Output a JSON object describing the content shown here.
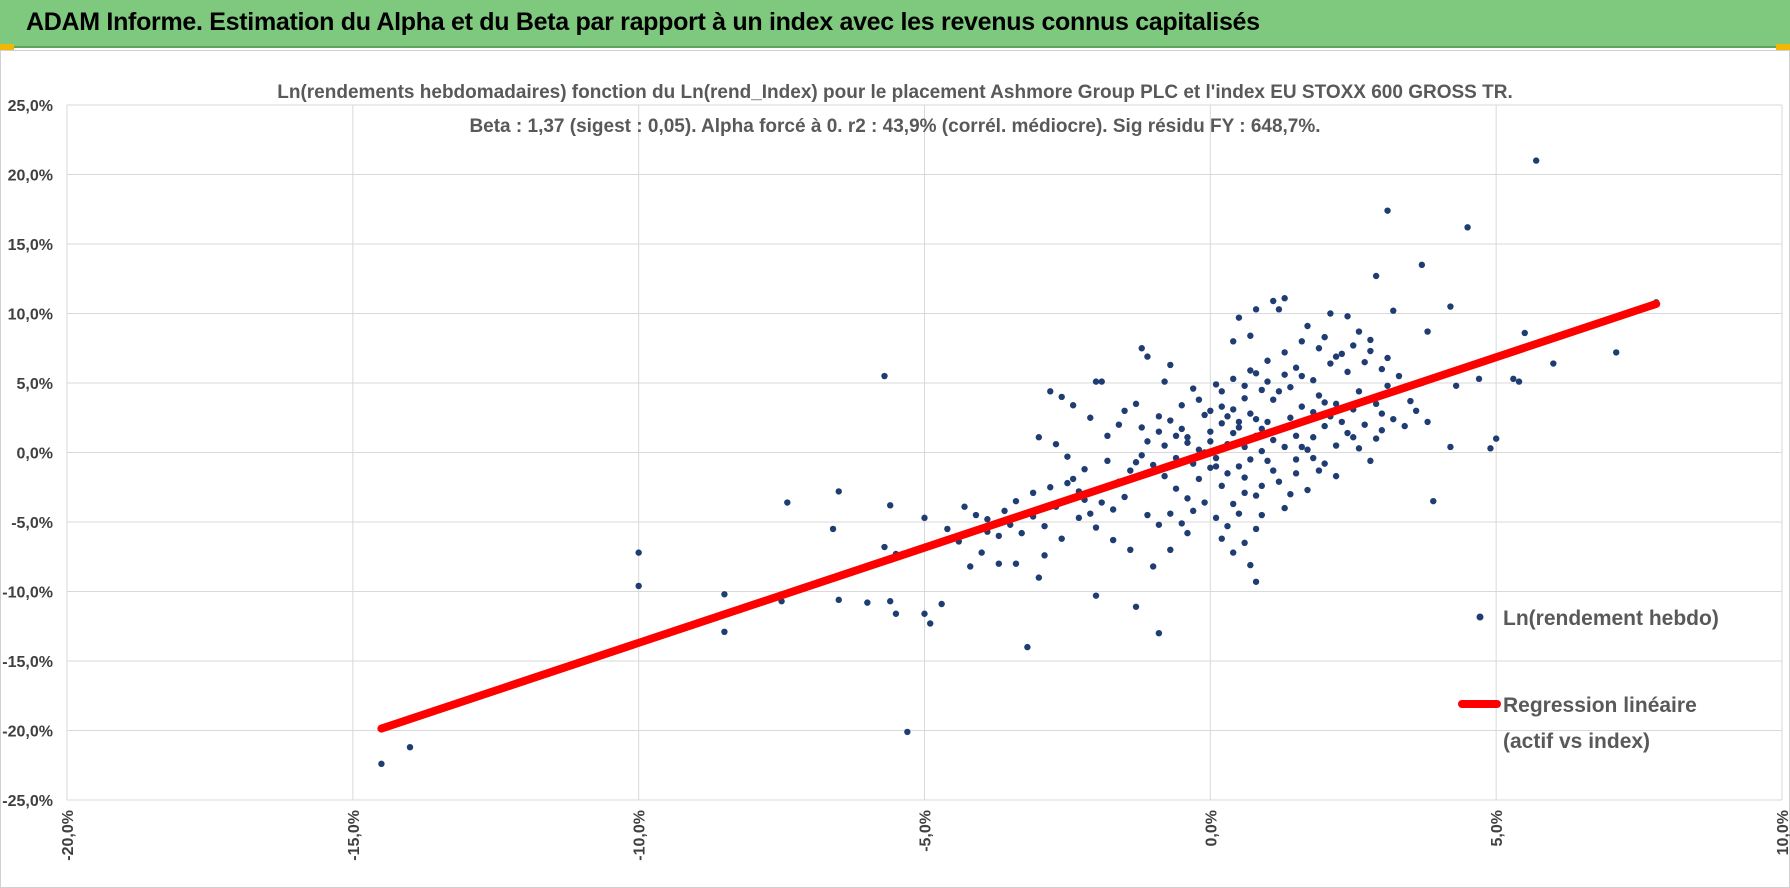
{
  "header": {
    "title": "ADAM Informe. Estimation du Alpha et du Beta par rapport à un index avec les revenus connus capitalisés"
  },
  "colors": {
    "header_bg": "#7fc97f",
    "points": "#1f3d73",
    "regression": "#ff0000",
    "grid": "#d9d9d9"
  },
  "chart_data": {
    "type": "scatter",
    "title": "Ln(rendements hebdomadaires) fonction du Ln(rend_Index) pour le placement Ashmore Group PLC et l'index EU STOXX 600 GROSS TR.",
    "subtitle": "Beta : 1,37 (sigest : 0,05). Alpha forcé à 0. r2 : 43,9% (corrél. médiocre). Sig résidu FY : 648,7%.",
    "xlabel": "",
    "ylabel": "",
    "xlim": [
      -0.2,
      0.1
    ],
    "ylim": [
      -0.25,
      0.25
    ],
    "x_ticks": [
      -0.2,
      -0.15,
      -0.1,
      -0.05,
      0.0,
      0.05,
      0.1
    ],
    "x_tick_labels": [
      "-20,0%",
      "-15,0%",
      "-10,0%",
      "-5,0%",
      "0,0%",
      "5,0%",
      "10,0%"
    ],
    "y_ticks": [
      0.25,
      0.2,
      0.15,
      0.1,
      0.05,
      0.0,
      -0.05,
      -0.1,
      -0.15,
      -0.2,
      -0.25
    ],
    "y_tick_labels": [
      "25,0%",
      "20,0%",
      "15,0%",
      "10,0%",
      "5,0%",
      "0,0%",
      "-5,0%",
      "-10,0%",
      "-15,0%",
      "-20,0%",
      "-25,0%"
    ],
    "grid": "on",
    "legend_position": "right",
    "series": [
      {
        "name": "Ln(rendement hebdo)",
        "kind": "scatter",
        "points": [
          [
            0.057,
            0.21
          ],
          [
            0.031,
            0.174
          ],
          [
            0.045,
            0.162
          ],
          [
            0.037,
            0.135
          ],
          [
            0.029,
            0.127
          ],
          [
            0.078,
            0.108
          ],
          [
            0.042,
            0.105
          ],
          [
            0.032,
            0.102
          ],
          [
            0.013,
            0.111
          ],
          [
            0.011,
            0.109
          ],
          [
            0.008,
            0.103
          ],
          [
            0.021,
            0.1
          ],
          [
            0.024,
            0.098
          ],
          [
            0.038,
            0.087
          ],
          [
            0.055,
            0.086
          ],
          [
            0.071,
            0.072
          ],
          [
            0.06,
            0.064
          ],
          [
            0.053,
            0.053
          ],
          [
            0.054,
            0.051
          ],
          [
            0.047,
            0.053
          ],
          [
            0.043,
            0.048
          ],
          [
            0.037,
            0.05
          ],
          [
            0.036,
            0.03
          ],
          [
            0.038,
            0.022
          ],
          [
            0.042,
            0.004
          ],
          [
            0.05,
            0.01
          ],
          [
            0.049,
            0.003
          ],
          [
            0.039,
            -0.035
          ],
          [
            -0.057,
            0.055
          ],
          [
            -0.1,
            -0.072
          ],
          [
            -0.1,
            -0.096
          ],
          [
            -0.085,
            -0.102
          ],
          [
            -0.085,
            -0.129
          ],
          [
            -0.075,
            -0.107
          ],
          [
            -0.074,
            -0.036
          ],
          [
            -0.065,
            -0.028
          ],
          [
            -0.066,
            -0.055
          ],
          [
            -0.065,
            -0.106
          ],
          [
            -0.06,
            -0.108
          ],
          [
            -0.056,
            -0.107
          ],
          [
            -0.055,
            -0.116
          ],
          [
            -0.05,
            -0.116
          ],
          [
            -0.049,
            -0.123
          ],
          [
            -0.047,
            -0.109
          ],
          [
            -0.053,
            -0.201
          ],
          [
            -0.145,
            -0.224
          ],
          [
            -0.14,
            -0.212
          ],
          [
            -0.056,
            -0.038
          ],
          [
            -0.057,
            -0.068
          ],
          [
            -0.055,
            -0.073
          ],
          [
            -0.05,
            -0.047
          ],
          [
            -0.032,
            -0.14
          ],
          [
            -0.02,
            -0.103
          ],
          [
            -0.013,
            -0.111
          ],
          [
            -0.009,
            -0.13
          ],
          [
            -0.028,
            0.044
          ],
          [
            -0.026,
            0.04
          ],
          [
            -0.024,
            0.034
          ],
          [
            -0.02,
            0.051
          ],
          [
            -0.019,
            0.051
          ],
          [
            -0.012,
            0.075
          ],
          [
            -0.011,
            0.069
          ],
          [
            -0.008,
            0.051
          ],
          [
            -0.007,
            0.063
          ],
          [
            -0.013,
            0.035
          ],
          [
            -0.015,
            0.03
          ],
          [
            -0.021,
            0.025
          ],
          [
            -0.003,
            0.046
          ],
          [
            0.012,
            0.103
          ],
          [
            0.005,
            0.097
          ],
          [
            0.004,
            0.08
          ],
          [
            0.007,
            0.084
          ],
          [
            0.017,
            0.091
          ],
          [
            0.02,
            0.083
          ],
          [
            0.026,
            0.087
          ],
          [
            0.028,
            0.081
          ],
          [
            0.027,
            0.065
          ],
          [
            0.03,
            0.06
          ],
          [
            0.031,
            0.048
          ],
          [
            0.033,
            0.045
          ],
          [
            0.029,
            0.035
          ],
          [
            0.03,
            0.028
          ],
          [
            0.027,
            0.02
          ],
          [
            0.029,
            0.01
          ],
          [
            0.02,
            0.019
          ],
          [
            0.022,
            0.005
          ],
          [
            0.018,
            -0.004
          ],
          [
            0.015,
            -0.015
          ],
          [
            0.017,
            -0.027
          ],
          [
            0.013,
            -0.04
          ],
          [
            0.009,
            -0.045
          ],
          [
            0.008,
            -0.055
          ],
          [
            0.006,
            -0.065
          ],
          [
            0.007,
            -0.081
          ],
          [
            0.008,
            -0.093
          ],
          [
            0.004,
            -0.072
          ],
          [
            0.002,
            -0.062
          ],
          [
            -0.004,
            -0.058
          ],
          [
            -0.007,
            -0.07
          ],
          [
            -0.01,
            -0.082
          ],
          [
            -0.014,
            -0.07
          ],
          [
            -0.017,
            -0.063
          ],
          [
            -0.02,
            -0.054
          ],
          [
            -0.023,
            -0.047
          ],
          [
            -0.026,
            -0.062
          ],
          [
            -0.029,
            -0.074
          ],
          [
            -0.03,
            -0.09
          ],
          [
            -0.034,
            -0.08
          ],
          [
            -0.037,
            -0.08
          ],
          [
            -0.04,
            -0.072
          ],
          [
            -0.042,
            -0.082
          ],
          [
            -0.044,
            -0.064
          ],
          [
            -0.046,
            -0.055
          ],
          [
            -0.039,
            -0.048
          ],
          [
            -0.036,
            -0.042
          ],
          [
            -0.034,
            -0.035
          ],
          [
            -0.031,
            -0.029
          ],
          [
            -0.028,
            -0.025
          ],
          [
            -0.024,
            -0.019
          ],
          [
            -0.022,
            -0.012
          ],
          [
            -0.025,
            -0.003
          ],
          [
            -0.027,
            0.006
          ],
          [
            -0.03,
            0.011
          ],
          [
            -0.018,
            0.012
          ],
          [
            -0.016,
            0.02
          ],
          [
            -0.012,
            0.018
          ],
          [
            -0.009,
            0.026
          ],
          [
            -0.005,
            0.034
          ],
          [
            -0.002,
            0.038
          ],
          [
            0.002,
            0.044
          ],
          [
            0.004,
            0.031
          ],
          [
            0.006,
            0.039
          ],
          [
            0.009,
            0.045
          ],
          [
            0.011,
            0.038
          ],
          [
            0.013,
            0.056
          ],
          [
            0.015,
            0.061
          ],
          [
            0.018,
            0.052
          ],
          [
            0.021,
            0.064
          ],
          [
            0.023,
            0.071
          ],
          [
            0.024,
            0.058
          ],
          [
            0.026,
            0.044
          ],
          [
            0.025,
            0.031
          ],
          [
            0.022,
            0.035
          ],
          [
            0.019,
            0.041
          ],
          [
            0.016,
            0.033
          ],
          [
            0.014,
            0.025
          ],
          [
            0.012,
            0.016
          ],
          [
            0.01,
            0.022
          ],
          [
            0.008,
            0.012
          ],
          [
            0.006,
            0.004
          ],
          [
            0.004,
            0.014
          ],
          [
            0.002,
            0.021
          ],
          [
            0.0,
            0.008
          ],
          [
            -0.002,
            0.002
          ],
          [
            -0.004,
            0.011
          ],
          [
            -0.006,
            -0.004
          ],
          [
            -0.008,
            0.005
          ],
          [
            -0.01,
            -0.009
          ],
          [
            -0.012,
            -0.002
          ],
          [
            -0.014,
            -0.013
          ],
          [
            -0.016,
            -0.021
          ],
          [
            -0.018,
            -0.006
          ],
          [
            -0.02,
            -0.027
          ],
          [
            -0.022,
            -0.034
          ],
          [
            -0.008,
            -0.017
          ],
          [
            -0.006,
            -0.026
          ],
          [
            -0.004,
            -0.033
          ],
          [
            -0.002,
            -0.019
          ],
          [
            0.0,
            -0.011
          ],
          [
            0.002,
            -0.024
          ],
          [
            0.004,
            -0.037
          ],
          [
            0.006,
            -0.018
          ],
          [
            0.008,
            -0.031
          ],
          [
            0.01,
            -0.006
          ],
          [
            0.012,
            -0.021
          ],
          [
            0.014,
            -0.03
          ],
          [
            0.016,
            0.004
          ],
          [
            0.018,
            0.011
          ],
          [
            0.02,
            -0.008
          ],
          [
            0.022,
            -0.017
          ],
          [
            0.024,
            0.014
          ],
          [
            0.026,
            0.003
          ],
          [
            0.028,
            -0.006
          ],
          [
            0.03,
            0.016
          ],
          [
            0.032,
            0.024
          ],
          [
            0.034,
            0.019
          ],
          [
            0.035,
            0.037
          ],
          [
            0.033,
            0.055
          ],
          [
            0.031,
            0.068
          ],
          [
            0.028,
            0.073
          ],
          [
            0.025,
            0.077
          ],
          [
            0.022,
            0.069
          ],
          [
            0.019,
            0.075
          ],
          [
            0.016,
            0.08
          ],
          [
            0.013,
            0.072
          ],
          [
            0.01,
            0.066
          ],
          [
            0.007,
            0.059
          ],
          [
            0.004,
            0.053
          ],
          [
            0.001,
            0.049
          ],
          [
            -0.001,
            0.027
          ],
          [
            0.003,
            0.026
          ],
          [
            0.005,
            0.022
          ],
          [
            0.007,
            0.028
          ],
          [
            0.009,
            0.017
          ],
          [
            0.011,
            0.009
          ],
          [
            0.013,
            0.004
          ],
          [
            0.015,
            -0.005
          ],
          [
            0.017,
            0.002
          ],
          [
            0.019,
            -0.013
          ],
          [
            0.021,
            0.026
          ],
          [
            0.023,
            0.022
          ],
          [
            0.025,
            0.011
          ],
          [
            0.0,
            0.015
          ],
          [
            -0.001,
            0.0
          ],
          [
            0.001,
            -0.004
          ],
          [
            0.003,
            0.006
          ],
          [
            0.005,
            -0.01
          ],
          [
            0.007,
            -0.005
          ],
          [
            0.009,
            0.001
          ],
          [
            -0.003,
            -0.008
          ],
          [
            -0.005,
            0.017
          ],
          [
            -0.007,
            0.023
          ],
          [
            -0.009,
            0.015
          ],
          [
            -0.011,
            0.008
          ],
          [
            -0.013,
            -0.007
          ],
          [
            -0.015,
            -0.032
          ],
          [
            -0.017,
            -0.041
          ],
          [
            -0.019,
            -0.036
          ],
          [
            -0.021,
            -0.044
          ],
          [
            -0.023,
            -0.028
          ],
          [
            -0.025,
            -0.022
          ],
          [
            -0.027,
            -0.039
          ],
          [
            -0.029,
            -0.053
          ],
          [
            -0.031,
            -0.046
          ],
          [
            -0.033,
            -0.058
          ],
          [
            -0.035,
            -0.052
          ],
          [
            -0.037,
            -0.06
          ],
          [
            -0.039,
            -0.057
          ],
          [
            -0.041,
            -0.045
          ],
          [
            -0.043,
            -0.039
          ],
          [
            -0.011,
            -0.045
          ],
          [
            -0.009,
            -0.052
          ],
          [
            -0.007,
            -0.044
          ],
          [
            -0.005,
            -0.051
          ],
          [
            -0.003,
            -0.042
          ],
          [
            -0.001,
            -0.036
          ],
          [
            0.001,
            -0.047
          ],
          [
            0.003,
            -0.053
          ],
          [
            0.005,
            -0.044
          ],
          [
            0.0,
            0.03
          ],
          [
            0.002,
            0.033
          ],
          [
            0.006,
            0.048
          ],
          [
            0.008,
            0.057
          ],
          [
            0.01,
            0.051
          ],
          [
            0.012,
            0.044
          ],
          [
            0.014,
            0.047
          ],
          [
            0.016,
            0.055
          ],
          [
            0.018,
            0.029
          ],
          [
            0.02,
            0.036
          ],
          [
            0.015,
            0.012
          ],
          [
            0.011,
            -0.013
          ],
          [
            0.009,
            -0.024
          ],
          [
            0.006,
            -0.029
          ],
          [
            0.003,
            -0.015
          ],
          [
            0.001,
            -0.01
          ],
          [
            -0.002,
            -0.002
          ],
          [
            -0.004,
            0.007
          ],
          [
            0.005,
            0.018
          ],
          [
            0.008,
            0.024
          ],
          [
            -0.006,
            0.012
          ]
        ]
      },
      {
        "name": "Regression linéaire\n(actif vs index)",
        "kind": "line",
        "points": [
          [
            -0.145,
            -0.1986
          ],
          [
            0.078,
            0.1069
          ]
        ]
      }
    ],
    "legend": [
      {
        "label": "Ln(rendement hebdo)",
        "marker": "dot"
      },
      {
        "label_line1": "Regression linéaire",
        "label_line2": "(actif vs index)",
        "marker": "line"
      }
    ]
  }
}
